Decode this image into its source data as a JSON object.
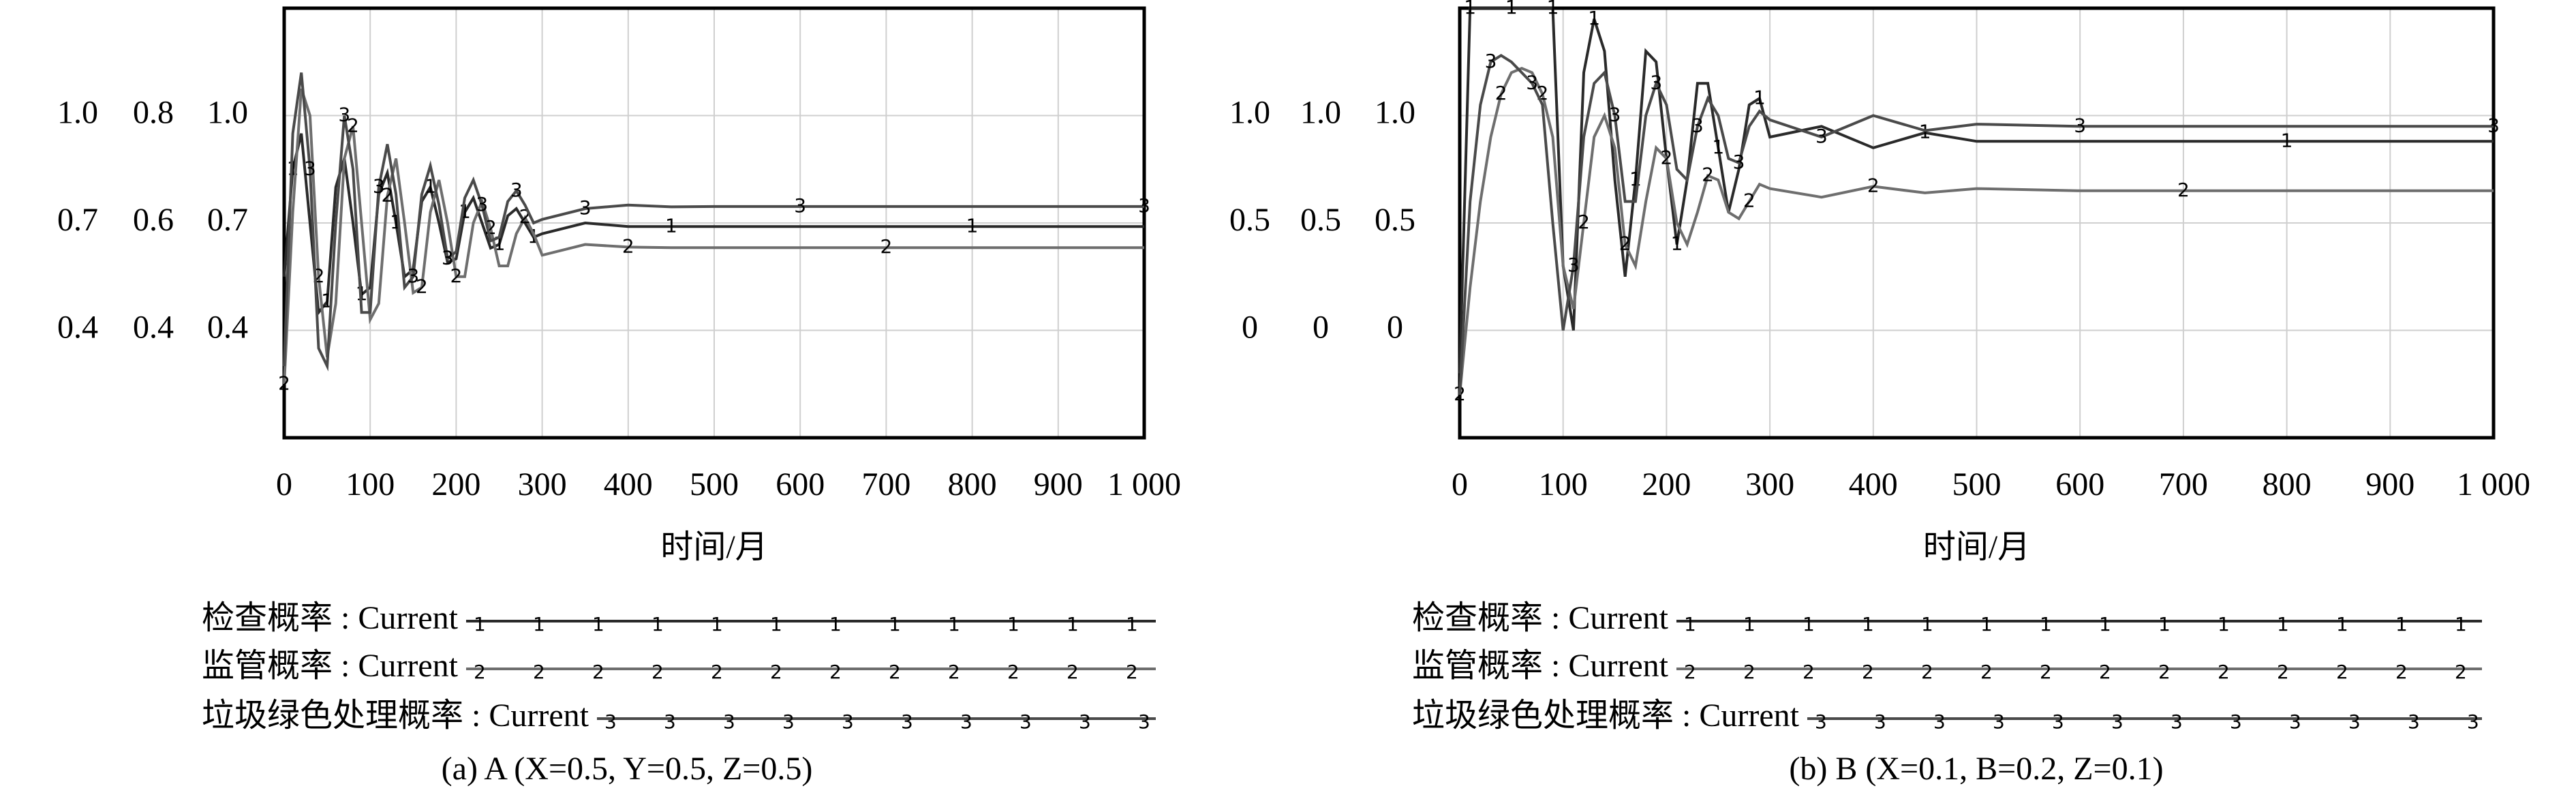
{
  "chart_data": [
    {
      "type": "line",
      "xlabel": "时间/月",
      "caption": "(a) A (X=0.5, Y=0.5, Z=0.5)",
      "x": [
        0,
        10,
        20,
        30,
        40,
        50,
        60,
        70,
        80,
        90,
        100,
        110,
        120,
        130,
        140,
        150,
        160,
        170,
        180,
        190,
        200,
        210,
        220,
        230,
        240,
        250,
        260,
        270,
        280,
        290,
        300,
        350,
        400,
        450,
        500,
        600,
        700,
        800,
        900,
        1000
      ],
      "xlim": [
        0,
        1000
      ],
      "xticks": [
        0,
        100,
        200,
        300,
        400,
        500,
        600,
        700,
        800,
        900,
        {
          "value": 1000,
          "label": "1 000"
        }
      ],
      "ylim": [
        0.1,
        1.3
      ],
      "yticks": [
        0.4,
        0.7,
        {
          "value": 1,
          "label": "1.0"
        }
      ],
      "y2lim": [
        0.2,
        1.0
      ],
      "y2ticks": [
        0.4,
        0.6,
        0.8
      ],
      "y3lim": [
        0.1,
        1.3
      ],
      "y3ticks": [
        0.4,
        0.7,
        {
          "value": 1,
          "label": "1.0"
        }
      ],
      "grid": true,
      "series": [
        {
          "name": "检查概率 : Current",
          "marker_label": "1",
          "color": "#2a2a2a",
          "axis": "y",
          "values": [
            0.55,
            0.85,
            0.95,
            0.7,
            0.45,
            0.48,
            0.8,
            0.88,
            0.7,
            0.5,
            0.52,
            0.78,
            0.84,
            0.7,
            0.55,
            0.57,
            0.76,
            0.8,
            0.7,
            0.59,
            0.6,
            0.73,
            0.77,
            0.7,
            0.63,
            0.64,
            0.72,
            0.74,
            0.7,
            0.66,
            0.67,
            0.7,
            0.69,
            0.69,
            0.69,
            0.69,
            0.69,
            0.69,
            0.69,
            0.69
          ]
        },
        {
          "name": "监管概率 : Current",
          "marker_label": "2",
          "color": "#6e6e6e",
          "axis": "y2",
          "values": [
            0.3,
            0.62,
            0.85,
            0.8,
            0.5,
            0.35,
            0.45,
            0.72,
            0.78,
            0.6,
            0.42,
            0.45,
            0.65,
            0.72,
            0.6,
            0.47,
            0.48,
            0.62,
            0.68,
            0.6,
            0.5,
            0.5,
            0.6,
            0.64,
            0.59,
            0.52,
            0.52,
            0.58,
            0.61,
            0.58,
            0.54,
            0.56,
            0.555,
            0.554,
            0.554,
            0.554,
            0.554,
            0.554,
            0.554,
            0.554
          ]
        },
        {
          "name": "垃圾绿色处理概率 : Current",
          "marker_label": "3",
          "color": "#4a4a4a",
          "axis": "y3",
          "values": [
            0.3,
            0.95,
            1.12,
            0.85,
            0.35,
            0.3,
            0.7,
            1.0,
            0.85,
            0.45,
            0.45,
            0.8,
            0.92,
            0.78,
            0.52,
            0.55,
            0.78,
            0.86,
            0.75,
            0.6,
            0.62,
            0.77,
            0.82,
            0.75,
            0.65,
            0.66,
            0.76,
            0.79,
            0.75,
            0.7,
            0.71,
            0.74,
            0.75,
            0.745,
            0.746,
            0.746,
            0.746,
            0.746,
            0.746,
            0.746
          ]
        }
      ]
    },
    {
      "type": "line",
      "xlabel": "时间/月",
      "caption": "(b) B (X=0.1, B=0.2, Z=0.1)",
      "x": [
        0,
        10,
        20,
        30,
        40,
        50,
        60,
        70,
        80,
        90,
        100,
        110,
        120,
        130,
        140,
        150,
        160,
        170,
        180,
        190,
        200,
        210,
        220,
        230,
        240,
        250,
        260,
        270,
        280,
        290,
        300,
        350,
        400,
        450,
        500,
        600,
        700,
        800,
        900,
        1000
      ],
      "xlim": [
        0,
        1000
      ],
      "xticks": [
        0,
        100,
        200,
        300,
        400,
        500,
        600,
        700,
        800,
        900,
        {
          "value": 1000,
          "label": "1 000"
        }
      ],
      "ylim": [
        -0.5,
        1.5
      ],
      "yticks": [
        0,
        0.5,
        {
          "value": 1,
          "label": "1.0"
        }
      ],
      "y2lim": [
        -0.5,
        1.5
      ],
      "y2ticks": [
        0,
        0.5,
        {
          "value": 1,
          "label": "1.0"
        }
      ],
      "y3lim": [
        -0.5,
        1.5
      ],
      "y3ticks": [
        0,
        0.5,
        {
          "value": 1,
          "label": "1.0"
        }
      ],
      "grid": true,
      "series": [
        {
          "name": "检查概率 : Current",
          "marker_label": "1",
          "color": "#2a2a2a",
          "axis": "y",
          "values": [
            -0.2,
            1.5,
            1.5,
            1.5,
            1.5,
            1.5,
            1.5,
            1.5,
            1.5,
            1.5,
            0.3,
            0.0,
            1.2,
            1.45,
            1.3,
            0.7,
            0.25,
            0.7,
            1.3,
            1.25,
            0.8,
            0.4,
            0.7,
            1.15,
            1.15,
            0.85,
            0.55,
            0.75,
            1.05,
            1.08,
            0.9,
            0.95,
            0.85,
            0.92,
            0.88,
            0.88,
            0.88,
            0.88,
            0.88,
            0.88
          ]
        },
        {
          "name": "监管概率 : Current",
          "marker_label": "2",
          "color": "#6e6e6e",
          "axis": "y2",
          "values": [
            -0.3,
            0.2,
            0.6,
            0.9,
            1.1,
            1.2,
            1.22,
            1.2,
            1.1,
            0.9,
            0.3,
            0.1,
            0.5,
            0.9,
            1.0,
            0.85,
            0.4,
            0.3,
            0.6,
            0.85,
            0.8,
            0.5,
            0.4,
            0.55,
            0.72,
            0.7,
            0.55,
            0.52,
            0.6,
            0.68,
            0.66,
            0.62,
            0.67,
            0.64,
            0.66,
            0.65,
            0.65,
            0.65,
            0.65,
            0.65
          ]
        },
        {
          "name": "垃圾绿色处理概率 : Current",
          "marker_label": "3",
          "color": "#4a4a4a",
          "axis": "y3",
          "values": [
            -0.3,
            0.6,
            1.05,
            1.25,
            1.28,
            1.25,
            1.2,
            1.15,
            1.05,
            0.5,
            0.0,
            0.3,
            0.9,
            1.15,
            1.2,
            1.0,
            0.6,
            0.6,
            1.0,
            1.15,
            1.05,
            0.75,
            0.7,
            0.95,
            1.08,
            1.0,
            0.8,
            0.78,
            0.95,
            1.02,
            0.98,
            0.9,
            1.0,
            0.93,
            0.96,
            0.95,
            0.95,
            0.95,
            0.95,
            0.95
          ]
        }
      ]
    }
  ]
}
